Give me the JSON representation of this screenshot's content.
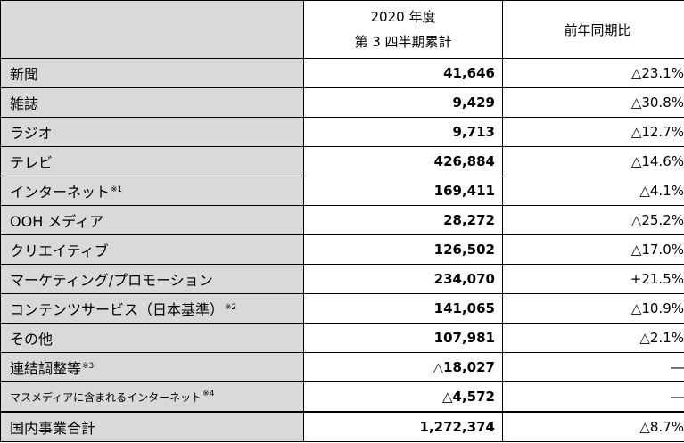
{
  "header": {
    "period_line1": "2020 年度",
    "period_line2": "第 3 四半期累計",
    "yoy": "前年同期比"
  },
  "rows": [
    {
      "label": "新聞",
      "note": "",
      "value": "41,646",
      "yoy": "△23.1%"
    },
    {
      "label": "雑誌",
      "note": "",
      "value": "9,429",
      "yoy": "△30.8%"
    },
    {
      "label": "ラジオ",
      "note": "",
      "value": "9,713",
      "yoy": "△12.7%"
    },
    {
      "label": "テレビ",
      "note": "",
      "value": "426,884",
      "yoy": "△14.6%"
    },
    {
      "label": "インターネット",
      "note": "※1",
      "value": "169,411",
      "yoy": "△4.1%"
    },
    {
      "label": "OOH メディア",
      "note": "",
      "value": "28,272",
      "yoy": "△25.2%"
    },
    {
      "label": "クリエイティブ",
      "note": "",
      "value": "126,502",
      "yoy": "△17.0%"
    },
    {
      "label": "マーケティング/プロモーション",
      "note": "",
      "value": "234,070",
      "yoy": "+21.5%"
    },
    {
      "label": "コンテンツサービス（日本基準）",
      "note": "※2",
      "value": "141,065",
      "yoy": "△10.9%"
    },
    {
      "label": "その他",
      "note": "",
      "value": "107,981",
      "yoy": "△2.1%"
    },
    {
      "label": "連結調整等",
      "note": "※3",
      "value": "△18,027",
      "yoy": "―"
    },
    {
      "label": "マスメディアに含まれるインターネット",
      "note": "※4",
      "value": "△4,572",
      "yoy": "―"
    }
  ],
  "total": {
    "label": "国内事業合計",
    "value": "1,272,374",
    "yoy": "△8.7%"
  }
}
